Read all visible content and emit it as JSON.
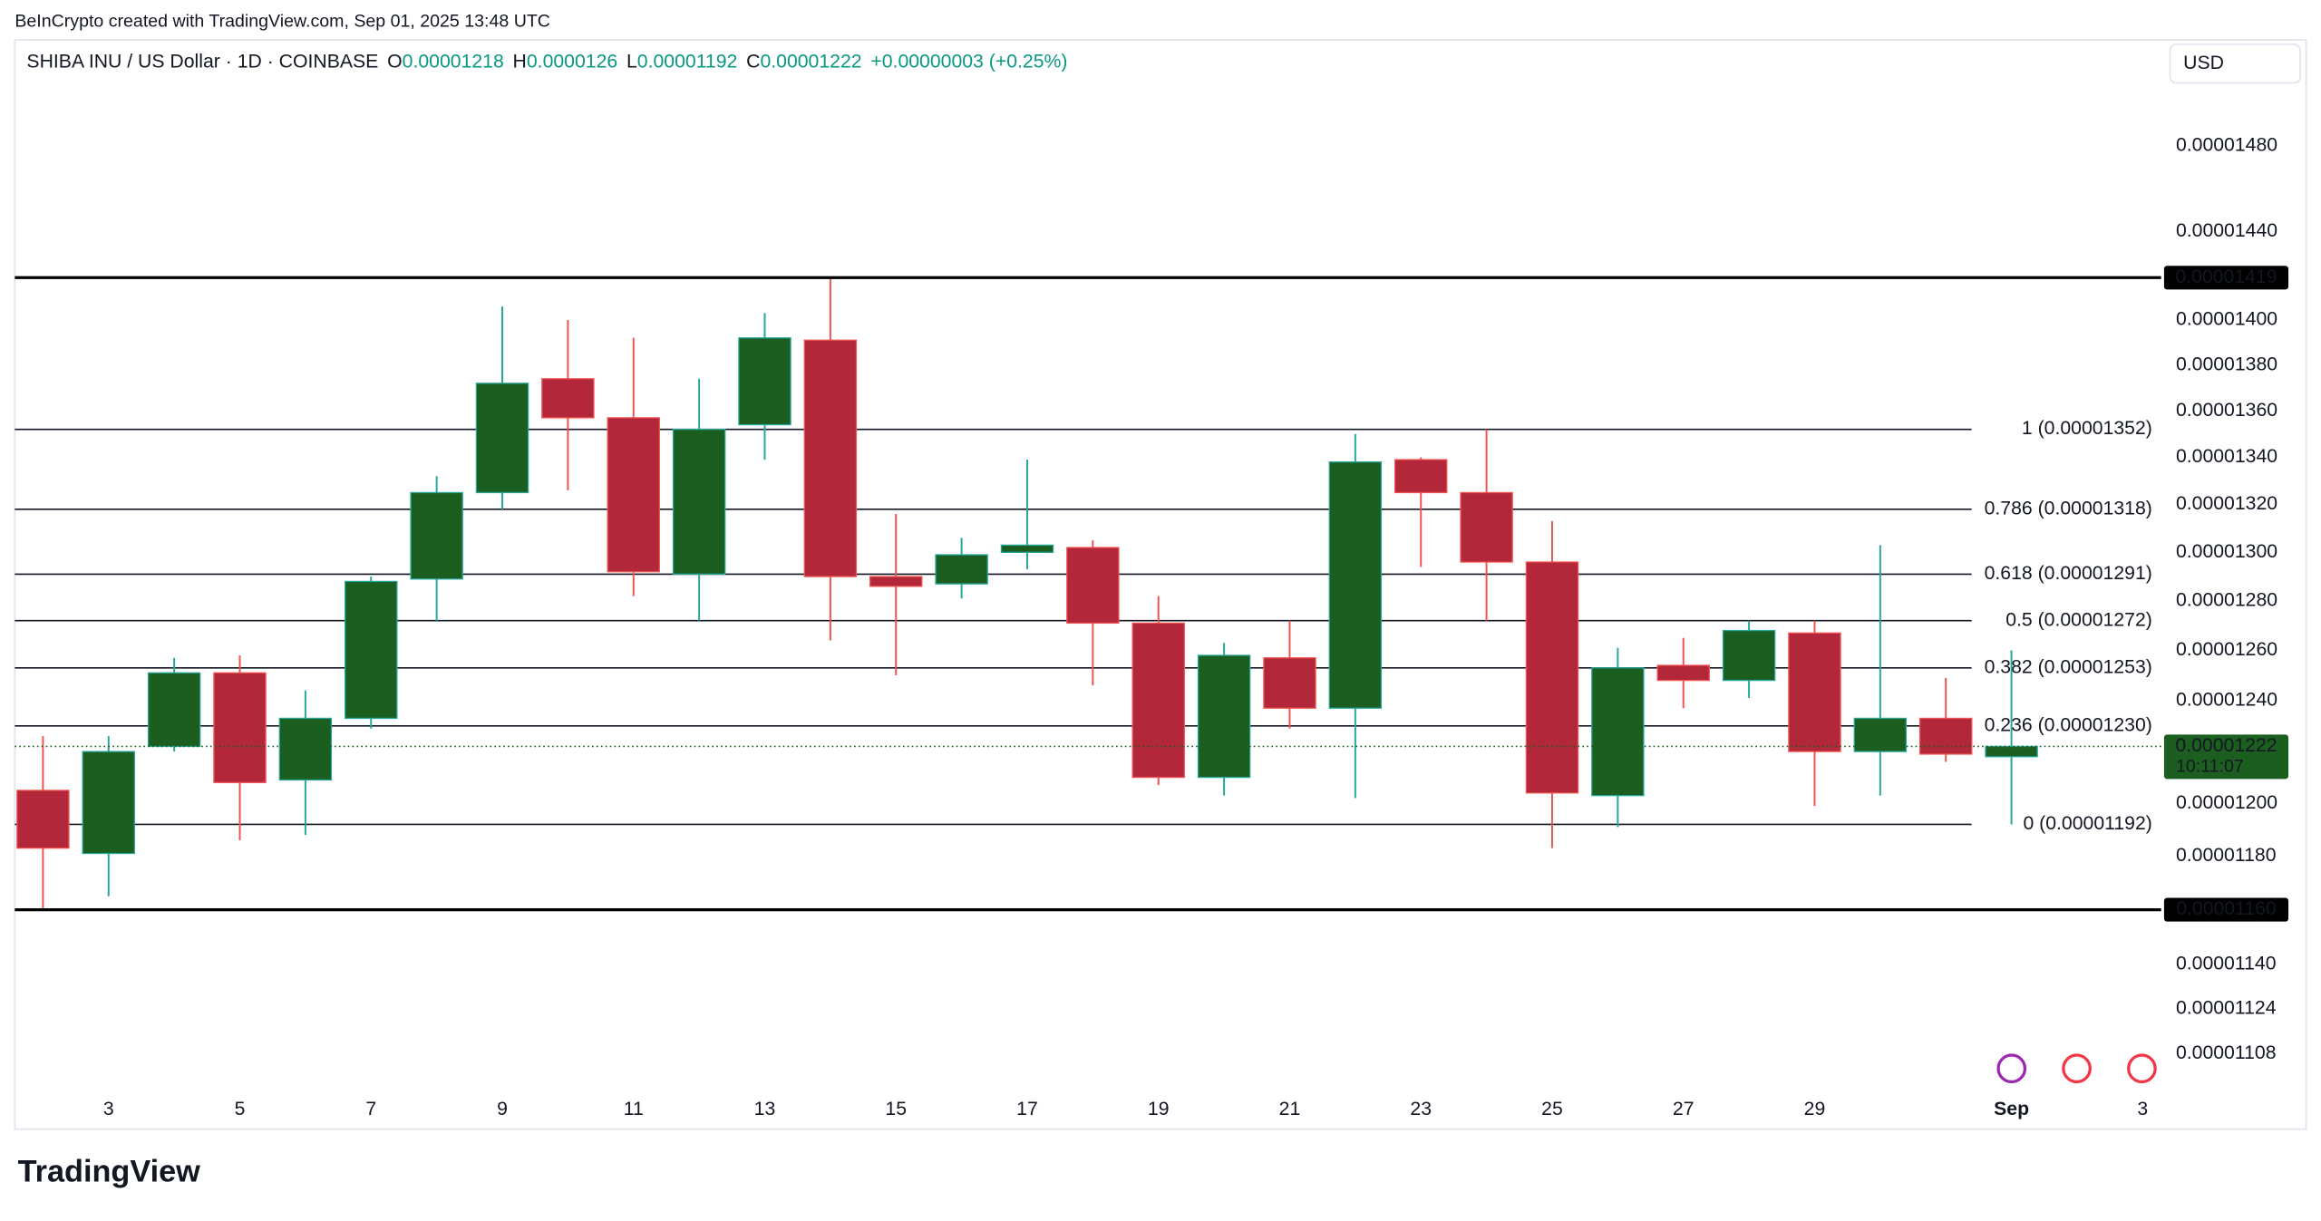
{
  "header": {
    "attribution": "BeInCrypto created with TradingView.com, Sep 01, 2025 13:48 UTC",
    "symbol": "SHIBA INU / US Dollar · 1D · COINBASE",
    "o_label": "O",
    "h_label": "H",
    "l_label": "L",
    "c_label": "C",
    "change": "+0.00000003 (+0.25%)",
    "currency": "USD"
  },
  "footer": {
    "logo": "TradingView"
  },
  "chart_data": {
    "type": "candlestick",
    "log_scale": true,
    "grid": false,
    "up_color": "#1b5e20",
    "up_wick": "#26a69a",
    "down_color": "#b2283a",
    "down_wick": "#ef5350",
    "categories": [
      null,
      "3",
      null,
      "5",
      null,
      "7",
      null,
      "9",
      null,
      "11",
      null,
      "13",
      null,
      "15",
      null,
      "17",
      null,
      "19",
      null,
      "21",
      null,
      "23",
      null,
      "25",
      null,
      "27",
      null,
      "29",
      null,
      null,
      "Sep",
      null,
      "3"
    ],
    "series": {
      "open": [
        1.205e-05,
        1.181e-05,
        1.222e-05,
        1.251e-05,
        1.209e-05,
        1.233e-05,
        1.289e-05,
        1.325e-05,
        1.374e-05,
        1.357e-05,
        1.291e-05,
        1.354e-05,
        1.391e-05,
        1.29e-05,
        1.287e-05,
        1.3e-05,
        1.302e-05,
        1.271e-05,
        1.21e-05,
        1.257e-05,
        1.237e-05,
        1.339e-05,
        1.325e-05,
        1.296e-05,
        1.203e-05,
        1.254e-05,
        1.248e-05,
        1.267e-05,
        1.22e-05,
        1.233e-05,
        1.218e-05,
        null,
        null
      ],
      "high": [
        1.226e-05,
        1.226e-05,
        1.257e-05,
        1.258e-05,
        1.244e-05,
        1.29e-05,
        1.332e-05,
        1.406e-05,
        1.4e-05,
        1.392e-05,
        1.374e-05,
        1.403e-05,
        1.419e-05,
        1.316e-05,
        1.306e-05,
        1.339e-05,
        1.305e-05,
        1.282e-05,
        1.263e-05,
        1.272e-05,
        1.35e-05,
        1.34e-05,
        1.352e-05,
        1.313e-05,
        1.261e-05,
        1.265e-05,
        1.272e-05,
        1.272e-05,
        1.303e-05,
        1.249e-05,
        1.26e-05,
        null,
        null
      ],
      "low": [
        1.16e-05,
        1.165e-05,
        1.22e-05,
        1.186e-05,
        1.188e-05,
        1.229e-05,
        1.272e-05,
        1.318e-05,
        1.326e-05,
        1.282e-05,
        1.272e-05,
        1.339e-05,
        1.264e-05,
        1.25e-05,
        1.281e-05,
        1.293e-05,
        1.246e-05,
        1.207e-05,
        1.203e-05,
        1.229e-05,
        1.202e-05,
        1.294e-05,
        1.272e-05,
        1.183e-05,
        1.191e-05,
        1.237e-05,
        1.241e-05,
        1.199e-05,
        1.203e-05,
        1.216e-05,
        1.192e-05,
        null,
        null
      ],
      "close": [
        1.183e-05,
        1.22e-05,
        1.251e-05,
        1.208e-05,
        1.233e-05,
        1.288e-05,
        1.325e-05,
        1.372e-05,
        1.357e-05,
        1.292e-05,
        1.352e-05,
        1.392e-05,
        1.29e-05,
        1.286e-05,
        1.299e-05,
        1.303e-05,
        1.271e-05,
        1.21e-05,
        1.258e-05,
        1.237e-05,
        1.338e-05,
        1.325e-05,
        1.296e-05,
        1.204e-05,
        1.253e-05,
        1.248e-05,
        1.268e-05,
        1.22e-05,
        1.233e-05,
        1.219e-05,
        1.222e-05,
        null,
        null
      ]
    },
    "ylim": [
      1.096e-05,
      1.53e-05
    ],
    "yticks": [
      {
        "value": 1.48e-05,
        "label": "0.00001480"
      },
      {
        "value": 1.44e-05,
        "label": "0.00001440"
      },
      {
        "value": 1.4e-05,
        "label": "0.00001400"
      },
      {
        "value": 1.38e-05,
        "label": "0.00001380"
      },
      {
        "value": 1.36e-05,
        "label": "0.00001360"
      },
      {
        "value": 1.34e-05,
        "label": "0.00001340"
      },
      {
        "value": 1.32e-05,
        "label": "0.00001320"
      },
      {
        "value": 1.3e-05,
        "label": "0.00001300"
      },
      {
        "value": 1.28e-05,
        "label": "0.00001280"
      },
      {
        "value": 1.26e-05,
        "label": "0.00001260"
      },
      {
        "value": 1.24e-05,
        "label": "0.00001240"
      },
      {
        "value": 1.2e-05,
        "label": "0.00001200"
      },
      {
        "value": 1.18e-05,
        "label": "0.00001180"
      },
      {
        "value": 1.14e-05,
        "label": "0.00001140"
      },
      {
        "value": 1.124e-05,
        "label": "0.00001124"
      },
      {
        "value": 1.108e-05,
        "label": "0.00001108"
      }
    ],
    "key_levels": [
      {
        "value": 1.419e-05,
        "label": "0.00001419"
      },
      {
        "value": 1.16e-05,
        "label": "0.00001160"
      }
    ],
    "fib_levels": [
      {
        "value": 1.352e-05,
        "label": "1 (0.00001352)"
      },
      {
        "value": 1.318e-05,
        "label": "0.786 (0.00001318)"
      },
      {
        "value": 1.291e-05,
        "label": "0.618 (0.00001291)"
      },
      {
        "value": 1.272e-05,
        "label": "0.5 (0.00001272)"
      },
      {
        "value": 1.253e-05,
        "label": "0.382 (0.00001253)"
      },
      {
        "value": 1.23e-05,
        "label": "0.236 (0.00001230)"
      },
      {
        "value": 1.192e-05,
        "label": "0 (0.00001192)"
      }
    ],
    "current_price": {
      "value": 1.222e-05,
      "label": "0.00001222",
      "countdown": "10:11:07"
    }
  }
}
